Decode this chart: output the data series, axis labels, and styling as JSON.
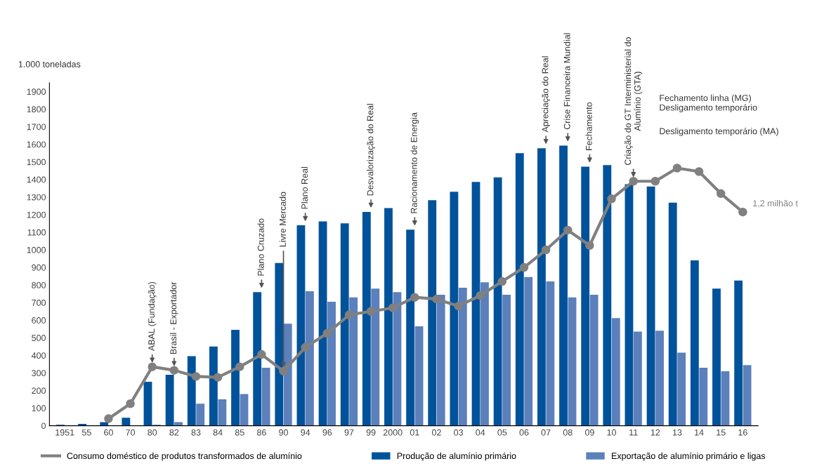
{
  "chart_data": {
    "type": "bar",
    "ylabel": "1.000 toneladas",
    "categories": [
      "1951",
      "55",
      "60",
      "70",
      "80",
      "82",
      "83",
      "84",
      "85",
      "86",
      "90",
      "94",
      "96",
      "97",
      "99",
      "2000",
      "01",
      "02",
      "03",
      "04",
      "05",
      "06",
      "07",
      "08",
      "09",
      "10",
      "11",
      "12",
      "13",
      "14",
      "15",
      "16"
    ],
    "series": [
      {
        "name": "Consumo doméstico de produtos transformados de alumínio",
        "type": "line",
        "color": "#808080",
        "values": [
          null,
          null,
          40,
          125,
          335,
          315,
          280,
          275,
          335,
          405,
          310,
          445,
          525,
          630,
          650,
          670,
          730,
          720,
          680,
          740,
          820,
          900,
          1000,
          1112,
          1025,
          1290,
          1390,
          1390,
          1465,
          1445,
          1320,
          1215
        ]
      },
      {
        "name": "Produção de alumínio primário",
        "color": "#00529b",
        "values": [
          5,
          10,
          20,
          45,
          250,
          290,
          395,
          450,
          545,
          760,
          925,
          1140,
          1162,
          1151,
          1216,
          1237,
          1115,
          1282,
          1330,
          1386,
          1412,
          1550,
          1578,
          1593,
          1473,
          1482,
          1373,
          1360,
          1268,
          940,
          780,
          825
        ]
      },
      {
        "name": "Exportação de alumínio primário e ligas",
        "color": "#5b80bb",
        "values": [
          0,
          0,
          0,
          0,
          5,
          20,
          125,
          150,
          180,
          330,
          580,
          765,
          705,
          730,
          780,
          760,
          565,
          745,
          785,
          815,
          745,
          845,
          820,
          730,
          745,
          612,
          535,
          540,
          415,
          330,
          310,
          345
        ]
      }
    ],
    "ylim": [
      0,
      1950
    ],
    "yticks": [
      0,
      100,
      200,
      300,
      400,
      500,
      600,
      700,
      800,
      900,
      1000,
      1100,
      1200,
      1300,
      1400,
      1500,
      1600,
      1700,
      1800,
      1900
    ],
    "grid": false,
    "legend": "bottom",
    "marker": "circle",
    "line_style": "solid",
    "annotations": [
      {
        "text": "ABAL (Fundação)",
        "x": "80",
        "y": 335
      },
      {
        "text": "Brasil - Exportador",
        "x": "82",
        "y": 315
      },
      {
        "text": "Plano Cruzado",
        "x": "86",
        "y": 760
      },
      {
        "text": "Livre Mercado",
        "x": "90",
        "y": 310
      },
      {
        "text": "Plano Real",
        "x": "94",
        "y": 1140
      },
      {
        "text": "Desvalorização do Real",
        "x": "99",
        "y": 1216
      },
      {
        "text": "Racionamento de Energia",
        "x": "01",
        "y": 1115
      },
      {
        "text": "Apreciação do Real",
        "x": "07",
        "y": 1578
      },
      {
        "text": "Crise Financeira Mundial",
        "x": "08",
        "y": 1593
      },
      {
        "text": "Fechamento",
        "x": "09",
        "y": 1473
      },
      {
        "text": "Criação do GT Interministerial do\nAlumínio (GTA)",
        "x": "11",
        "y": 1390
      },
      {
        "text": "1,2 milhão t",
        "x": "16",
        "y": 1215
      },
      "Fechamento linha (MG)\nDesligamento temporário",
      "Desligamento temporário (MA)"
    ]
  }
}
